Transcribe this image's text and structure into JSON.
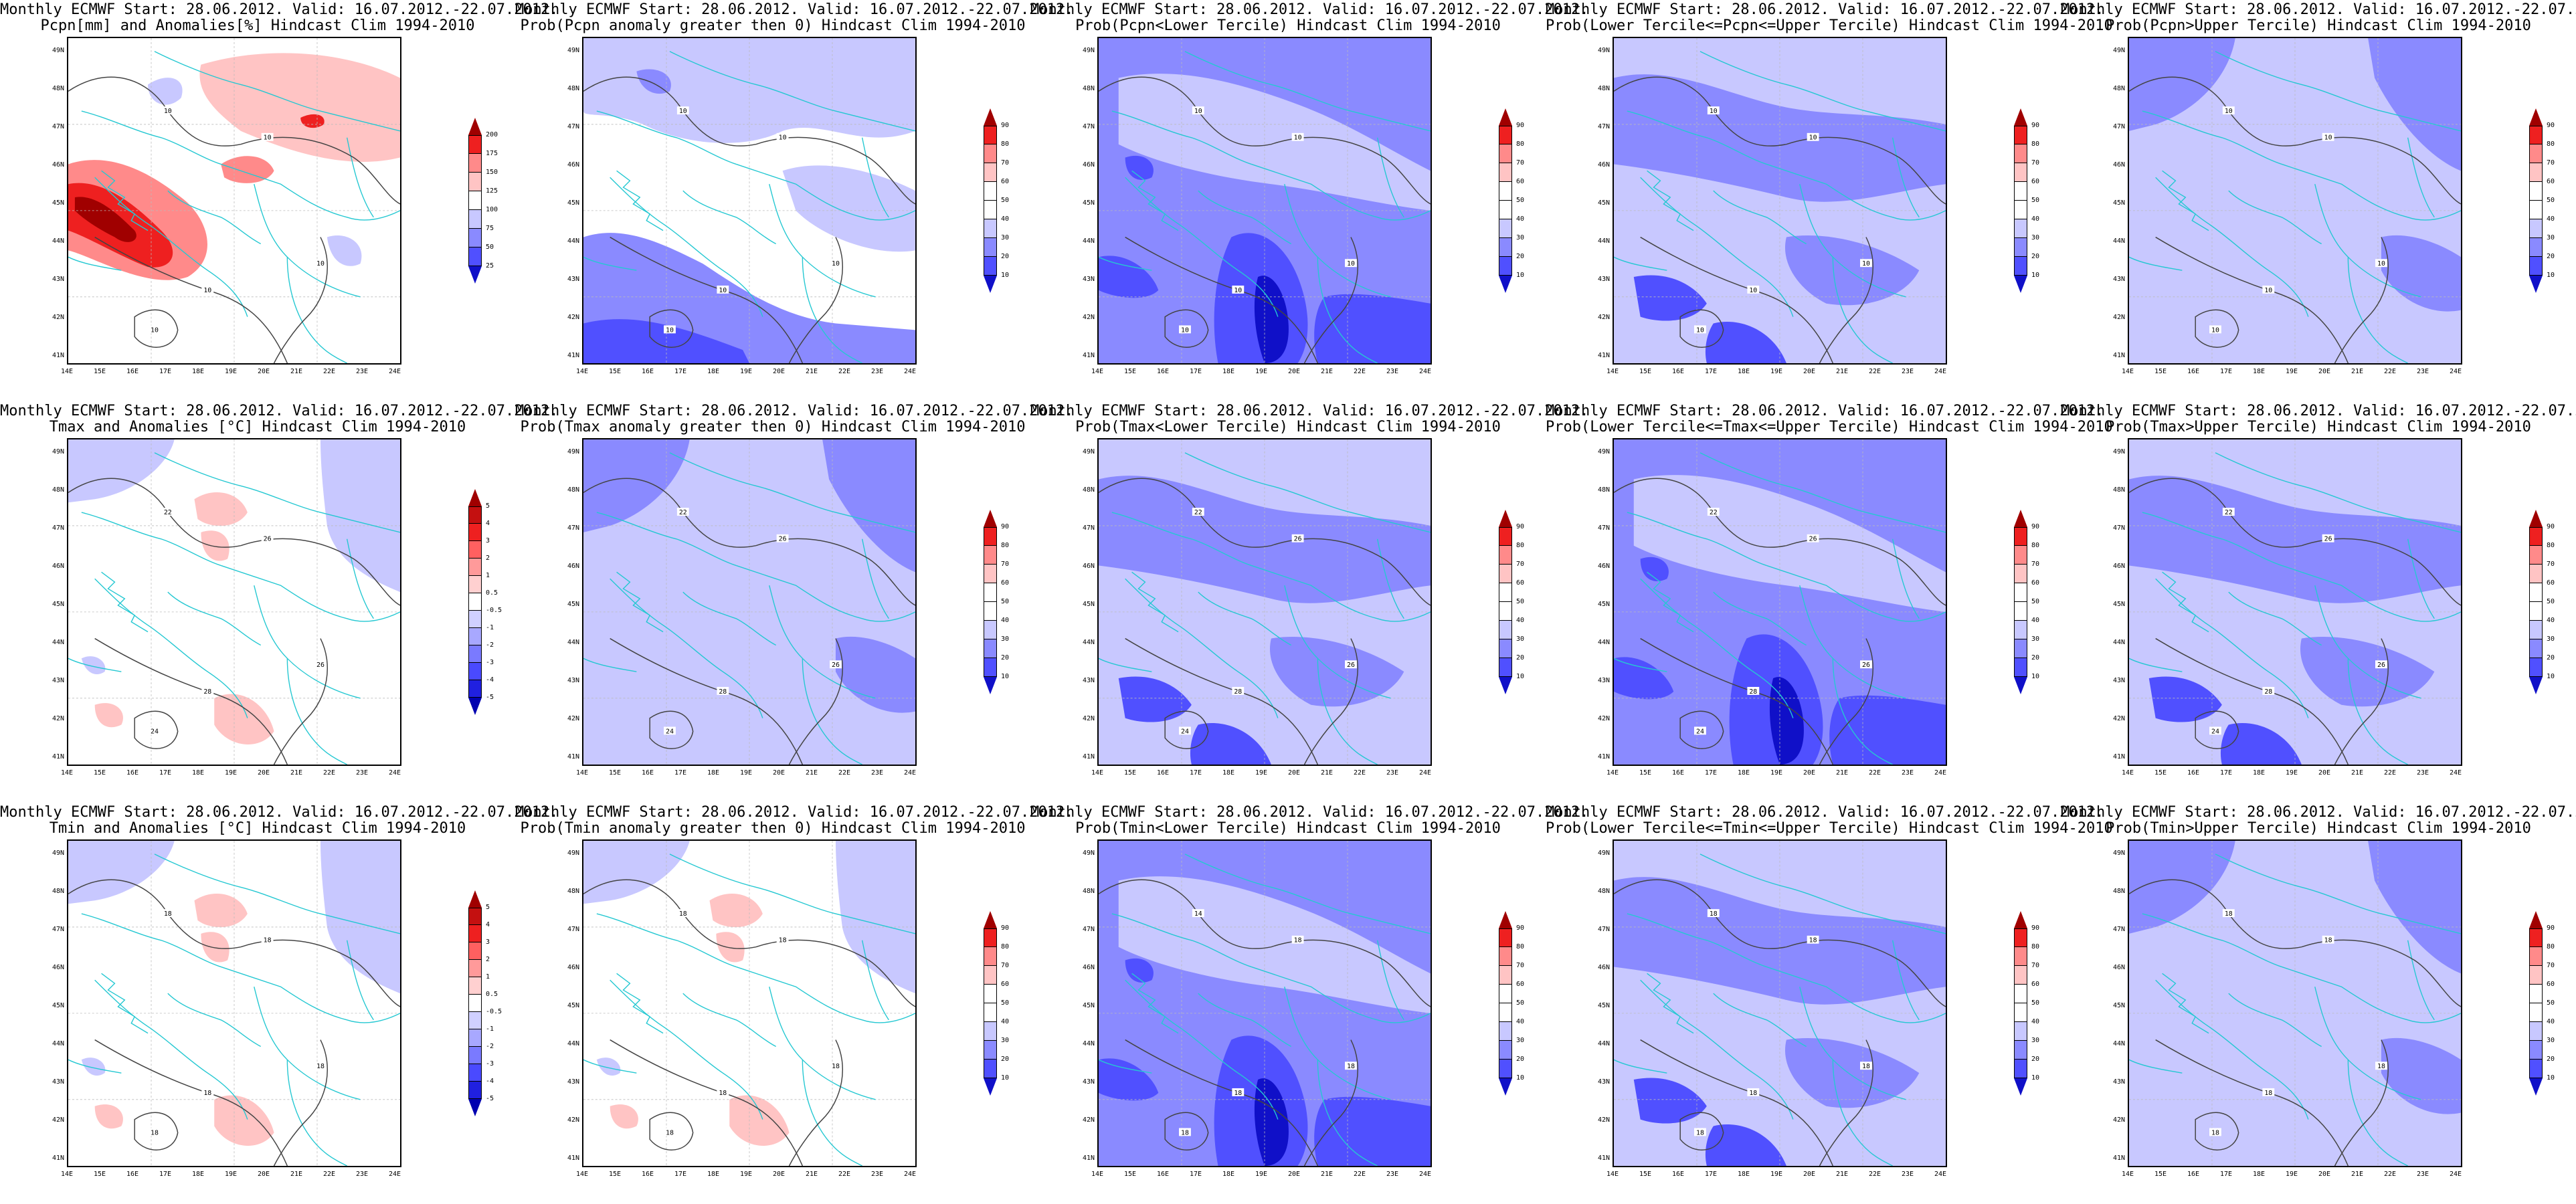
{
  "title_line1": "Monthly ECMWF Start: 28.06.2012. Valid: 16.07.2012.-22.07.2012.",
  "lat_labels": [
    "49N",
    "48N",
    "47N",
    "46N",
    "45N",
    "44N",
    "43N",
    "42N",
    "41N"
  ],
  "lon_labels": [
    "14E",
    "15E",
    "16E",
    "17E",
    "18E",
    "19E",
    "20E",
    "21E",
    "22E",
    "23E",
    "24E"
  ],
  "colors": {
    "coast": "#25c8d2",
    "contour": "#444444",
    "light_blue": "#c8c8ff",
    "mid_blue": "#8a8aff",
    "blue": "#5050ff",
    "dark_blue": "#1010c8",
    "pink": "#ffc4c4",
    "light_red": "#ff8a8a",
    "red": "#ee2020",
    "dark_red": "#a00000"
  },
  "panels": [
    {
      "id": "p1",
      "row": 0,
      "col": 0,
      "title2": "Pcpn[mm] and Anomalies[%] Hindcast Clim 1994-2010",
      "scale": "pcpn",
      "style": "red",
      "contour_labels": [
        "10",
        "10",
        "10",
        "10",
        "10"
      ]
    },
    {
      "id": "p2",
      "row": 0,
      "col": 1,
      "title2": "Prob(Pcpn anomaly greater then 0) Hindcast Clim 1994-2010",
      "scale": "prob",
      "style": "blueprob",
      "contour_labels": [
        "10",
        "10",
        "10",
        "10",
        "10"
      ]
    },
    {
      "id": "p3",
      "row": 0,
      "col": 2,
      "title2": "Prob(Pcpn<Lower Tercile) Hindcast Clim 1994-2010",
      "scale": "prob",
      "style": "bluestrong",
      "contour_labels": [
        "10",
        "10",
        "10",
        "10",
        "10"
      ]
    },
    {
      "id": "p4",
      "row": 0,
      "col": 3,
      "title2": "Prob(Lower Tercile<=Pcpn<=Upper Tercile) Hindcast Clim 1994-2010",
      "scale": "prob",
      "style": "bluemid",
      "contour_labels": [
        "10",
        "10",
        "10",
        "10",
        "10"
      ]
    },
    {
      "id": "p5",
      "row": 0,
      "col": 4,
      "title2": "Prob(Pcpn>Upper Tercile) Hindcast Clim 1994-2010",
      "scale": "prob",
      "style": "bluelight",
      "contour_labels": [
        "10",
        "10",
        "10",
        "10",
        "10"
      ]
    },
    {
      "id": "p6",
      "row": 1,
      "col": 0,
      "title2": "Tmax and Anomalies [°C] Hindcast Clim 1994-2010",
      "scale": "anom",
      "style": "whitepink",
      "contour_labels": [
        "22",
        "26",
        "28",
        "26",
        "24"
      ]
    },
    {
      "id": "p7",
      "row": 1,
      "col": 1,
      "title2": "Prob(Tmax anomaly greater then 0) Hindcast Clim 1994-2010",
      "scale": "prob",
      "style": "bluelight",
      "contour_labels": [
        "22",
        "26",
        "28",
        "26",
        "24"
      ]
    },
    {
      "id": "p8",
      "row": 1,
      "col": 2,
      "title2": "Prob(Tmax<Lower Tercile) Hindcast Clim 1994-2010",
      "scale": "prob",
      "style": "bluemid",
      "contour_labels": [
        "22",
        "26",
        "28",
        "26",
        "24"
      ]
    },
    {
      "id": "p9",
      "row": 1,
      "col": 3,
      "title2": "Prob(Lower Tercile<=Tmax<=Upper Tercile) Hindcast Clim 1994-2010",
      "scale": "prob",
      "style": "bluestrong",
      "contour_labels": [
        "22",
        "26",
        "28",
        "26",
        "24"
      ]
    },
    {
      "id": "p10",
      "row": 1,
      "col": 4,
      "title2": "Prob(Tmax>Upper Tercile) Hindcast Clim 1994-2010",
      "scale": "prob",
      "style": "bluemid",
      "contour_labels": [
        "22",
        "26",
        "28",
        "26",
        "24"
      ]
    },
    {
      "id": "p11",
      "row": 2,
      "col": 0,
      "title2": "Tmin and Anomalies [°C] Hindcast Clim 1994-2010",
      "scale": "anom",
      "style": "whitepink",
      "contour_labels": [
        "18",
        "18",
        "18",
        "18",
        "18"
      ]
    },
    {
      "id": "p12",
      "row": 2,
      "col": 1,
      "title2": "Prob(Tmin anomaly greater then 0) Hindcast Clim 1994-2010",
      "scale": "prob",
      "style": "whitepink",
      "contour_labels": [
        "18",
        "18",
        "18",
        "18",
        "18"
      ]
    },
    {
      "id": "p13",
      "row": 2,
      "col": 2,
      "title2": "Prob(Tmin<Lower Tercile) Hindcast Clim 1994-2010",
      "scale": "prob",
      "style": "bluestrong",
      "contour_labels": [
        "14",
        "18",
        "18",
        "18",
        "18"
      ]
    },
    {
      "id": "p14",
      "row": 2,
      "col": 3,
      "title2": "Prob(Lower Tercile<=Tmin<=Upper Tercile) Hindcast Clim 1994-2010",
      "scale": "prob",
      "style": "bluemid",
      "contour_labels": [
        "18",
        "18",
        "18",
        "18",
        "18"
      ]
    },
    {
      "id": "p15",
      "row": 2,
      "col": 4,
      "title2": "Prob(Tmin>Upper Tercile) Hindcast Clim 1994-2010",
      "scale": "prob",
      "style": "bluelight",
      "contour_labels": [
        "18",
        "18",
        "18",
        "18",
        "18"
      ]
    }
  ],
  "scales": {
    "pcpn": {
      "labels": [
        "200",
        "175",
        "150",
        "125",
        "100",
        "75",
        "50",
        "25"
      ],
      "colors": [
        "#a00000",
        "#ee2020",
        "#ff8a8a",
        "#ffc4c4",
        "#ffffff",
        "#c8c8ff",
        "#8a8aff",
        "#5050ff",
        "#1010c8"
      ],
      "top": "#a00000",
      "bottom": "#1010c8"
    },
    "prob": {
      "labels": [
        "90",
        "80",
        "70",
        "60",
        "50",
        "40",
        "30",
        "20",
        "10"
      ],
      "colors": [
        "#a00000",
        "#ee2020",
        "#ff8a8a",
        "#ffc4c4",
        "#ffffff",
        "#ffffff",
        "#c8c8ff",
        "#8a8aff",
        "#5050ff",
        "#1010c8"
      ],
      "top": "#a00000",
      "bottom": "#1010c8"
    },
    "anom": {
      "labels": [
        "5",
        "4",
        "3",
        "2",
        "1",
        "0.5",
        "-0.5",
        "-1",
        "-2",
        "-3",
        "-4",
        "-5"
      ],
      "colors": [
        "#a00000",
        "#c41010",
        "#ee2020",
        "#ff6060",
        "#ff9a9a",
        "#ffd0d0",
        "#ffffff",
        "#d0d0ff",
        "#a8a8ff",
        "#7a7aff",
        "#4a4aff",
        "#2020e0",
        "#0000b0"
      ],
      "top": "#a00000",
      "bottom": "#0000b0"
    }
  }
}
